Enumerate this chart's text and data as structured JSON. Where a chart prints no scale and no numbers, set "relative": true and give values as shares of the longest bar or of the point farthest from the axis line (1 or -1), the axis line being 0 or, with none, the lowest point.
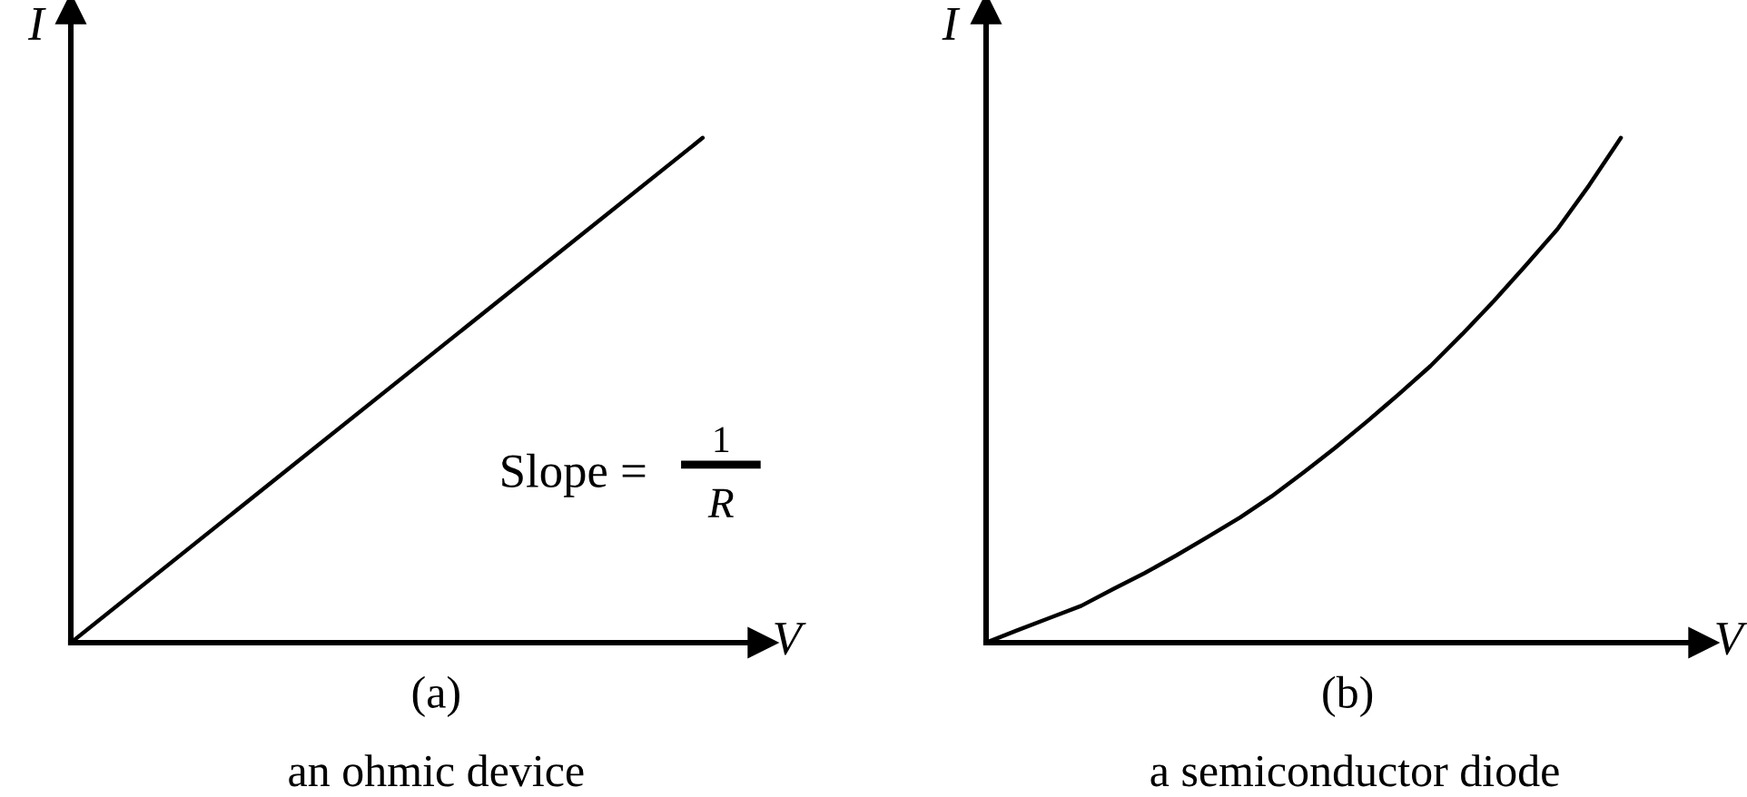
{
  "chart_data": [
    {
      "type": "line",
      "relative": true,
      "title": "(a)",
      "subtitle": "an ohmic device",
      "xlabel": "V",
      "ylabel": "I",
      "line_style": "solid",
      "categories": [
        null,
        null
      ],
      "series": [
        {
          "color": "#000000",
          "values": [
            0,
            1
          ]
        }
      ],
      "annotations": [
        "Slope =",
        "1",
        "R"
      ]
    },
    {
      "type": "line",
      "relative": true,
      "title": "(b)",
      "subtitle": "a semiconductor diode",
      "xlabel": "V",
      "ylabel": "I",
      "line_style": "solid",
      "categories": [
        null,
        null,
        null,
        null,
        null,
        null,
        null,
        null,
        null,
        null,
        null,
        null,
        null,
        null,
        null,
        null,
        null,
        null,
        null,
        null,
        null
      ],
      "series": [
        {
          "color": "#000000",
          "values": [
            0,
            0.025,
            0.049,
            0.073,
            0.106,
            0.138,
            0.173,
            0.21,
            0.248,
            0.29,
            0.337,
            0.386,
            0.438,
            0.492,
            0.548,
            0.611,
            0.677,
            0.747,
            0.819,
            0.906,
            1
          ]
        }
      ]
    }
  ]
}
